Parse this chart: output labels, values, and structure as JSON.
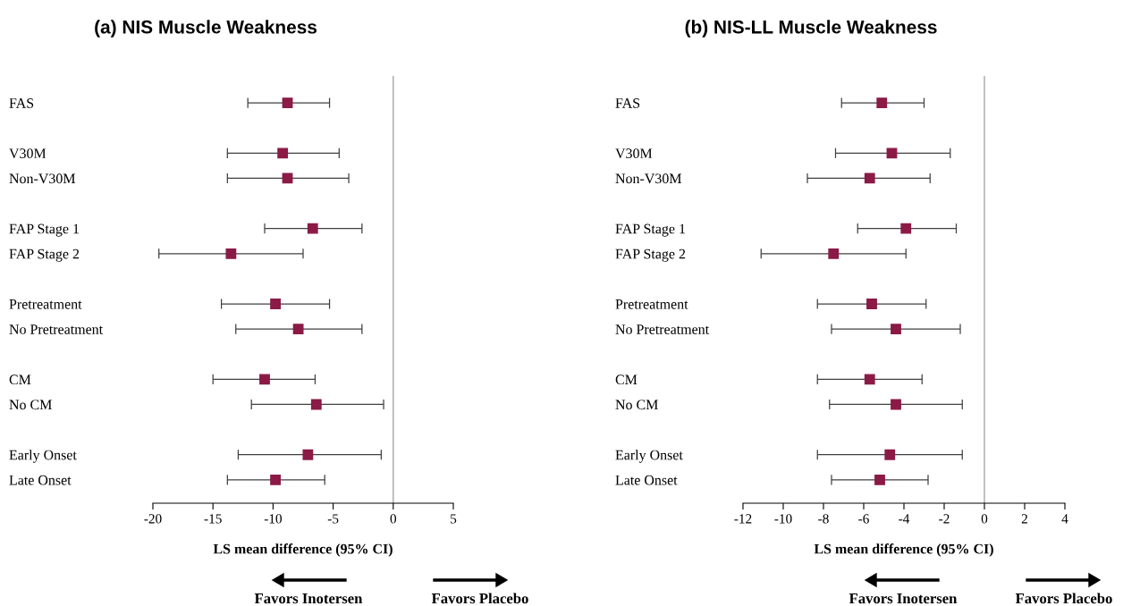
{
  "chart_data": [
    {
      "type": "scatter",
      "orientation": "horizontal",
      "title": "(a) NIS Muscle Weakness",
      "xlabel": "LS mean difference (95% CI)",
      "categories": [
        "FAS",
        null,
        "V30M",
        "Non-V30M",
        null,
        "FAP Stage 1",
        "FAP Stage 2",
        null,
        "Pretreatment",
        "No Pretreatment",
        null,
        "CM",
        "No CM",
        null,
        "Early Onset",
        "Late Onset"
      ],
      "series": [
        {
          "color": "#8b1a47",
          "values": [
            -8.8,
            null,
            -9.2,
            -8.8,
            null,
            -6.7,
            -13.5,
            null,
            -9.8,
            -7.9,
            null,
            -10.7,
            -6.4,
            null,
            -7.1,
            -9.8
          ],
          "errors": [
            [
              -12.1,
              -5.3
            ],
            null,
            [
              -13.8,
              -4.5
            ],
            [
              -13.8,
              -3.7
            ],
            null,
            [
              -10.7,
              -2.6
            ],
            [
              -19.5,
              -7.5
            ],
            null,
            [
              -14.3,
              -5.3
            ],
            [
              -13.1,
              -2.6
            ],
            null,
            [
              -15.0,
              -6.5
            ],
            [
              -11.8,
              -0.8
            ],
            null,
            [
              -12.9,
              -1.0
            ],
            [
              -13.8,
              -5.7
            ]
          ]
        }
      ],
      "xlim": [
        -20,
        5
      ],
      "xticks": [
        -20,
        -15,
        -10,
        -5,
        0,
        5
      ],
      "marker": "square",
      "grid": false,
      "legend": false,
      "ref_lines": [
        {
          "axis": "x",
          "value": 0,
          "color": "#a6a6a6"
        }
      ],
      "annotations": [
        "Favors Inotersen",
        "Favors Placebo"
      ]
    },
    {
      "type": "scatter",
      "orientation": "horizontal",
      "title": "(b) NIS-LL Muscle Weakness",
      "xlabel": "LS mean difference (95% CI)",
      "categories": [
        "FAS",
        null,
        "V30M",
        "Non-V30M",
        null,
        "FAP Stage 1",
        "FAP Stage 2",
        null,
        "Pretreatment",
        "No Pretreatment",
        null,
        "CM",
        "No CM",
        null,
        "Early Onset",
        "Late Onset"
      ],
      "series": [
        {
          "color": "#8b1a47",
          "values": [
            -5.1,
            null,
            -4.6,
            -5.7,
            null,
            -3.9,
            -7.5,
            null,
            -5.6,
            -4.4,
            null,
            -5.7,
            -4.4,
            null,
            -4.7,
            -5.2
          ],
          "errors": [
            [
              -7.1,
              -3.0
            ],
            null,
            [
              -7.4,
              -1.7
            ],
            [
              -8.8,
              -2.7
            ],
            null,
            [
              -6.3,
              -1.4
            ],
            [
              -11.1,
              -3.9
            ],
            null,
            [
              -8.3,
              -2.9
            ],
            [
              -7.6,
              -1.2
            ],
            null,
            [
              -8.3,
              -3.1
            ],
            [
              -7.7,
              -1.1
            ],
            null,
            [
              -8.3,
              -1.1
            ],
            [
              -7.6,
              -2.8
            ]
          ]
        }
      ],
      "xlim": [
        -12,
        4
      ],
      "xticks": [
        -12,
        -10,
        -8,
        -6,
        -4,
        -2,
        0,
        2,
        4
      ],
      "marker": "square",
      "grid": false,
      "legend": false,
      "ref_lines": [
        {
          "axis": "x",
          "value": 0,
          "color": "#a6a6a6"
        }
      ],
      "annotations": [
        "Favors Inotersen",
        "Favors Placebo"
      ]
    }
  ]
}
